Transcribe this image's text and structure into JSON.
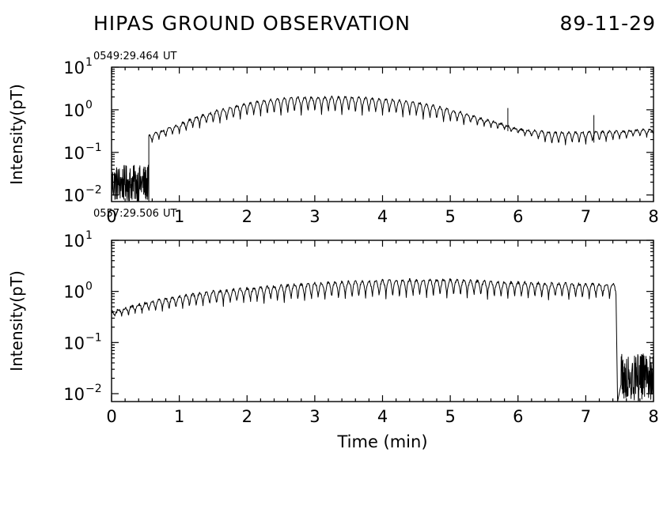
{
  "title": "HIPAS GROUND OBSERVATION",
  "date": "89-11-29",
  "chart_data": [
    {
      "type": "line",
      "timestamp": "0549:29.464",
      "timestamp_unit": "UT",
      "xlabel": "",
      "ylabel": "Intensity(pT)",
      "xlim": [
        0,
        8
      ],
      "ylim": [
        0.007,
        10
      ],
      "yscale": "log",
      "x_ticks": [
        "0",
        "1",
        "2",
        "3",
        "4",
        "5",
        "6",
        "7",
        "8"
      ],
      "y_ticks": [
        {
          "base": "10",
          "exp": "1"
        },
        {
          "base": "10",
          "exp": "0"
        },
        {
          "base": "10",
          "exp": "-1"
        },
        {
          "base": "10",
          "exp": "-2"
        }
      ],
      "envelope": {
        "x": [
          0.55,
          0.8,
          1.0,
          1.5,
          2.0,
          2.5,
          3.0,
          3.5,
          4.0,
          4.5,
          5.0,
          5.5,
          6.0,
          6.5,
          7.0,
          7.5,
          8.0
        ],
        "upper": [
          0.25,
          0.35,
          0.45,
          0.9,
          1.4,
          1.9,
          2.0,
          2.0,
          1.8,
          1.5,
          1.0,
          0.6,
          0.35,
          0.3,
          0.3,
          0.32,
          0.35
        ],
        "lower": [
          0.15,
          0.22,
          0.28,
          0.45,
          0.65,
          0.75,
          0.8,
          0.8,
          0.75,
          0.65,
          0.5,
          0.4,
          0.28,
          0.14,
          0.16,
          0.2,
          0.25
        ]
      },
      "noise_segment": {
        "x": [
          0,
          0.55
        ],
        "y_range": [
          0.007,
          0.05
        ]
      },
      "spikes": [
        {
          "x": 5.85,
          "y": 1.1
        },
        {
          "x": 7.12,
          "y": 0.75
        }
      ]
    },
    {
      "type": "line",
      "timestamp": "0557:29.506",
      "timestamp_unit": "UT",
      "xlabel": "Time  (min)",
      "ylabel": "Intensity(pT)",
      "xlim": [
        0,
        8
      ],
      "ylim": [
        0.007,
        10
      ],
      "yscale": "log",
      "x_ticks": [
        "0",
        "1",
        "2",
        "3",
        "4",
        "5",
        "6",
        "7",
        "8"
      ],
      "y_ticks": [
        {
          "base": "10",
          "exp": "1"
        },
        {
          "base": "10",
          "exp": "0"
        },
        {
          "base": "10",
          "exp": "-1"
        },
        {
          "base": "10",
          "exp": "-2"
        }
      ],
      "envelope": {
        "x": [
          0.0,
          0.5,
          1.0,
          1.5,
          2.0,
          2.5,
          3.0,
          3.5,
          4.0,
          4.5,
          5.0,
          5.5,
          6.0,
          6.5,
          7.0,
          7.45
        ],
        "upper": [
          0.4,
          0.6,
          0.8,
          1.0,
          1.15,
          1.3,
          1.45,
          1.55,
          1.65,
          1.7,
          1.7,
          1.6,
          1.5,
          1.45,
          1.4,
          1.4
        ],
        "lower": [
          0.3,
          0.38,
          0.45,
          0.52,
          0.58,
          0.62,
          0.66,
          0.7,
          0.72,
          0.74,
          0.75,
          0.74,
          0.72,
          0.7,
          0.7,
          0.7
        ]
      },
      "noise_segment": {
        "x": [
          7.52,
          8.0
        ],
        "y_range": [
          0.007,
          0.06
        ]
      },
      "spikes": []
    }
  ]
}
